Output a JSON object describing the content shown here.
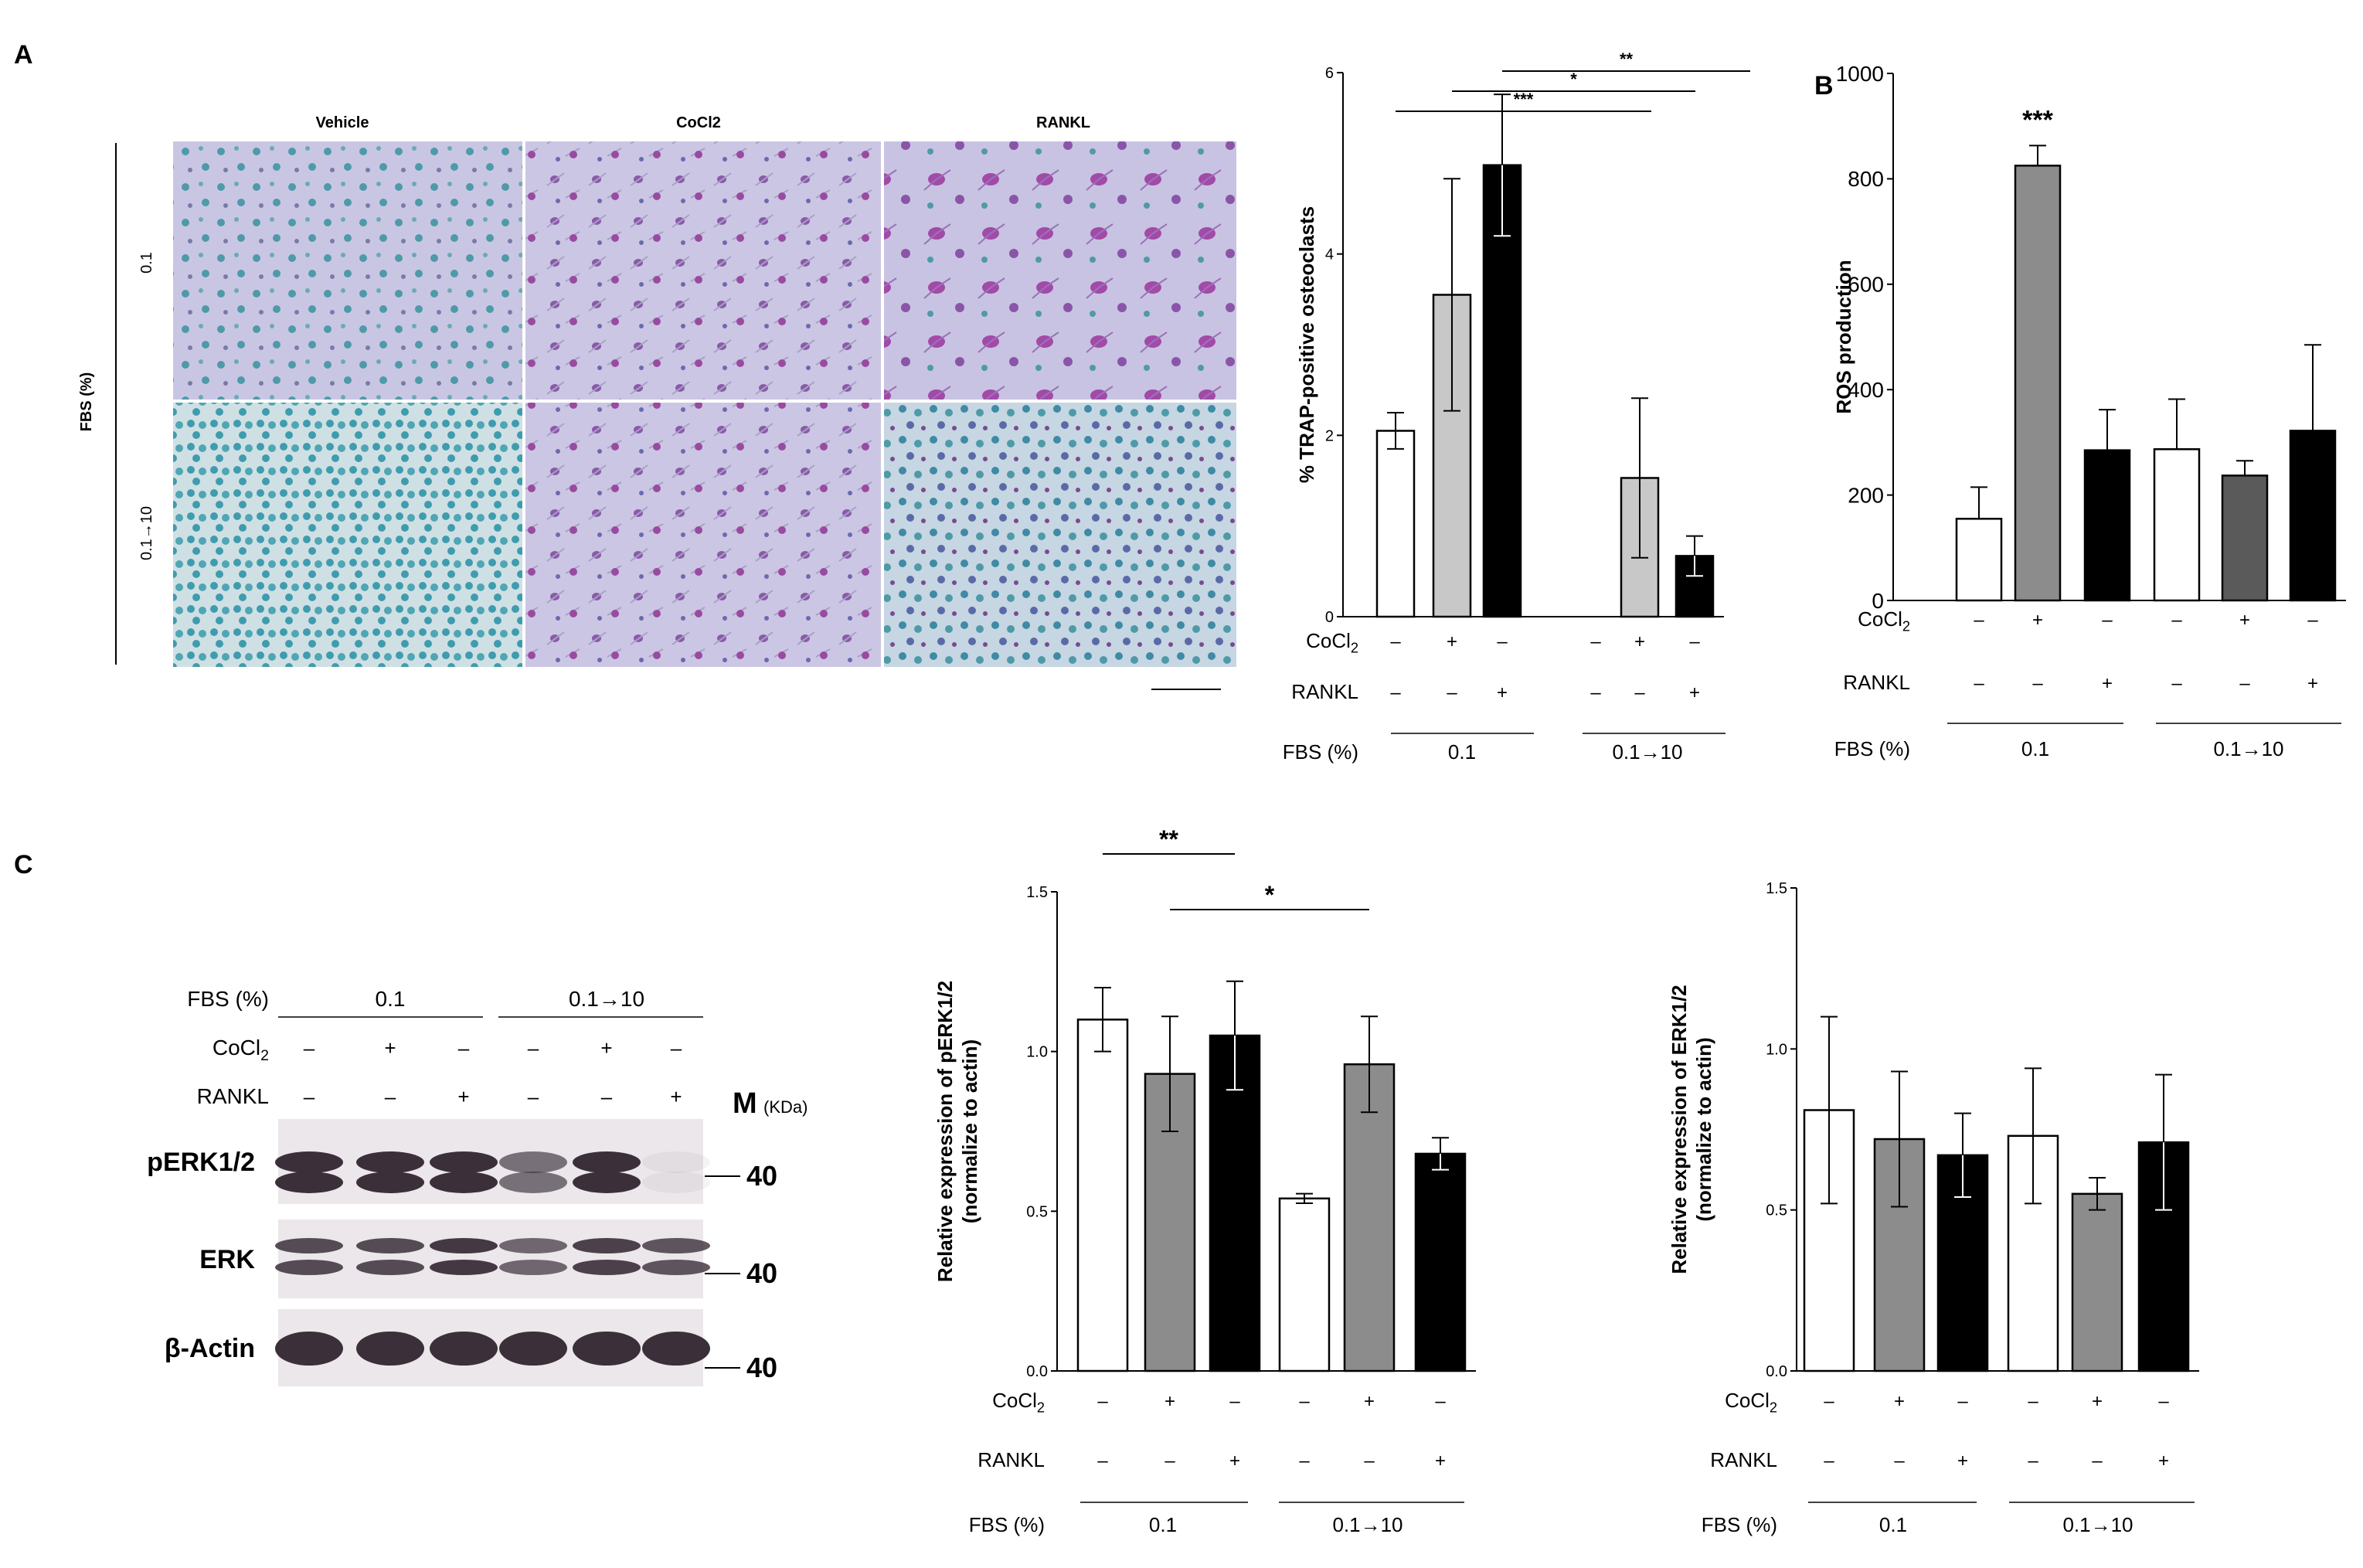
{
  "panels": {
    "a": "A",
    "b": "B",
    "c": "C"
  },
  "micrograph": {
    "columns": [
      "Vehicle",
      "CoCl2",
      "RANKL"
    ],
    "rows": [
      "0.1",
      "0.1→10"
    ],
    "row_axis_label": "FBS (%)"
  },
  "conditions": {
    "cocl2_label": "CoCl2",
    "rankl_label": "RANKL",
    "fbs_label": "FBS (%)",
    "cocl2_signs": [
      "–",
      "+",
      "–",
      "–",
      "+",
      "–"
    ],
    "rankl_signs": [
      "–",
      "–",
      "+",
      "–",
      "–",
      "+"
    ],
    "fbs_groups": [
      "0.1",
      "0.1→10"
    ]
  },
  "western": {
    "fbs_label": "FBS (%)",
    "fbs_groups": [
      "0.1",
      "0.1→10"
    ],
    "cocl2_label": "CoCl2",
    "rankl_label": "RANKL",
    "cocl2_signs": [
      "–",
      "+",
      "–",
      "–",
      "+",
      "–"
    ],
    "rankl_signs": [
      "–",
      "–",
      "+",
      "–",
      "–",
      "+"
    ],
    "marker_label": "M",
    "marker_unit": "(KDa)",
    "blots": [
      {
        "name": "pERK1/2",
        "kda": "40"
      },
      {
        "name": "ERK",
        "kda": "40"
      },
      {
        "name": "β-Actin",
        "kda": "40"
      }
    ]
  },
  "colors": {
    "white_bar": "#ffffff",
    "light_gray": "#c8c8c8",
    "mid_gray": "#8c8c8c",
    "dark_gray": "#5a5a5a",
    "black_bar": "#000000",
    "stain_blue": "#c9c6e4",
    "stain_purple": "#a24aa8",
    "stain_teal": "#4e9aa8"
  },
  "chart_data": [
    {
      "id": "trap",
      "type": "bar",
      "ylabel": "% TRAP-positive osteoclasts",
      "ylim": [
        0,
        6
      ],
      "yticks": [
        "0",
        "2",
        "4",
        "6"
      ],
      "yticks_values": [
        0,
        2,
        4,
        6
      ],
      "values": [
        2.05,
        3.55,
        4.98,
        null,
        1.53,
        0.67
      ],
      "errors": [
        0.2,
        1.28,
        0.78,
        null,
        0.88,
        0.22
      ],
      "fills": [
        "#ffffff",
        "#c8c8c8",
        "#000000",
        "#ffffff",
        "#c8c8c8",
        "#000000"
      ],
      "significance": [
        {
          "from": 0,
          "to": 4,
          "label": "***"
        },
        {
          "from": 1,
          "to": 5,
          "label": "*"
        },
        {
          "from": 2,
          "to": 6,
          "label": "**"
        }
      ]
    },
    {
      "id": "ros",
      "type": "bar",
      "ylabel": "ROS production",
      "ylim": [
        0,
        1000
      ],
      "yticks": [
        "0",
        "200",
        "400",
        "600",
        "800",
        "1000"
      ],
      "yticks_values": [
        0,
        200,
        400,
        600,
        800,
        1000
      ],
      "values": [
        155,
        825,
        285,
        287,
        237,
        322
      ],
      "errors": [
        60,
        38,
        77,
        95,
        28,
        163
      ],
      "fills": [
        "#ffffff",
        "#8c8c8c",
        "#000000",
        "#ffffff",
        "#5a5a5a",
        "#000000"
      ],
      "annotation": "***"
    },
    {
      "id": "perk",
      "type": "bar",
      "ylabel": "Relative expression of pERK1/2",
      "ylabel2": "(normalize to actin)",
      "ylim": [
        0,
        1.5
      ],
      "yticks": [
        "0.0",
        "0.5",
        "1.0",
        "1.5"
      ],
      "yticks_values": [
        0,
        0.5,
        1.0,
        1.5
      ],
      "values": [
        1.1,
        0.93,
        1.05,
        0.54,
        0.96,
        0.68
      ],
      "errors": [
        0.1,
        0.18,
        0.17,
        0.015,
        0.15,
        0.05
      ],
      "fills": [
        "#ffffff",
        "#8c8c8c",
        "#000000",
        "#ffffff",
        "#8c8c8c",
        "#000000"
      ],
      "significance": [
        {
          "from": 0,
          "to": 2,
          "label": "**"
        },
        {
          "from": 1,
          "to": 4,
          "label": "*"
        }
      ]
    },
    {
      "id": "erk",
      "type": "bar",
      "ylabel": "Relative expression of ERK1/2",
      "ylabel2": "(normalize to actin)",
      "ylim": [
        0,
        1.5
      ],
      "yticks": [
        "0.0",
        "0.5",
        "1.0",
        "1.5"
      ],
      "yticks_values": [
        0,
        0.5,
        1.0,
        1.5
      ],
      "values": [
        0.81,
        0.72,
        0.67,
        0.73,
        0.55,
        0.71
      ],
      "errors": [
        0.29,
        0.21,
        0.13,
        0.21,
        0.05,
        0.21
      ],
      "fills": [
        "#ffffff",
        "#8c8c8c",
        "#000000",
        "#ffffff",
        "#8c8c8c",
        "#000000"
      ]
    }
  ]
}
